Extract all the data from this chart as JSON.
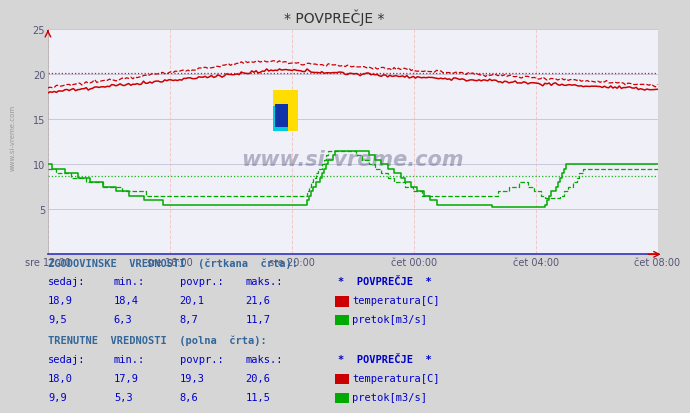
{
  "title": "* POVPREČJE *",
  "bg_color": "#d6d6d6",
  "plot_bg_color": "#f0f0f8",
  "x_labels": [
    "sre 12:00",
    "sre 16:00",
    "sre 20:00",
    "čet 00:00",
    "čet 04:00",
    "čet 08:00"
  ],
  "ylim": [
    0,
    25
  ],
  "grid_color": "#c8c8dc",
  "vgrid_color": "#f0c8c8",
  "temp_color": "#cc0000",
  "flow_color": "#00aa00",
  "avg_temp_hist": 20.1,
  "avg_flow_hist": 8.7,
  "watermark": "www.si-vreme.com",
  "n_points": 288,
  "text_color_blue": "#0000cc",
  "header_color": "#336699",
  "title_color": "#444444"
}
